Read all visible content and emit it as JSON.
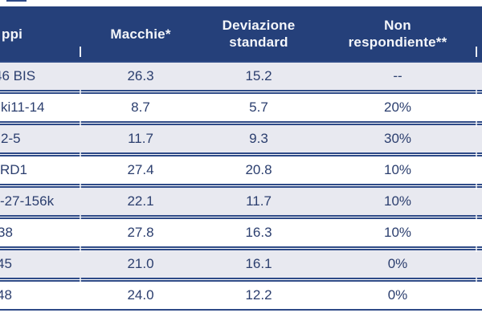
{
  "table": {
    "columns": [
      {
        "label": "ppi"
      },
      {
        "label": "Macchie*"
      },
      {
        "label": "Deviazione standard"
      },
      {
        "label": "Non respondiente**"
      }
    ],
    "rows": [
      {
        "gruppo": "46 BIS",
        "macchie": "26.3",
        "deviazione": "15.2",
        "non_respondiente": "--"
      },
      {
        "gruppo": "ki11-14",
        "macchie": "8.7",
        "deviazione": "5.7",
        "non_respondiente": "20%"
      },
      {
        "gruppo": "2-5",
        "macchie": "11.7",
        "deviazione": "9.3",
        "non_respondiente": "30%"
      },
      {
        "gruppo": "RD1",
        "macchie": "27.4",
        "deviazione": "20.8",
        "non_respondiente": "10%"
      },
      {
        "gruppo": "-27-156k",
        "macchie": "22.1",
        "deviazione": "11.7",
        "non_respondiente": "10%"
      },
      {
        "gruppo": "38",
        "macchie": "27.8",
        "deviazione": "16.3",
        "non_respondiente": "10%"
      },
      {
        "gruppo": "45",
        "macchie": "21.0",
        "deviazione": "16.1",
        "non_respondiente": "0%"
      },
      {
        "gruppo": "48",
        "macchie": "24.0",
        "deviazione": "12.2",
        "non_respondiente": "0%"
      }
    ]
  },
  "colors": {
    "header_background": "#25407a",
    "row_border": "#2e4a87",
    "row_alternate_background": "#e8e9f0",
    "body_text": "#2b3e6e",
    "header_text": "#f4f6fa",
    "divider_tick": "#ffffff"
  }
}
